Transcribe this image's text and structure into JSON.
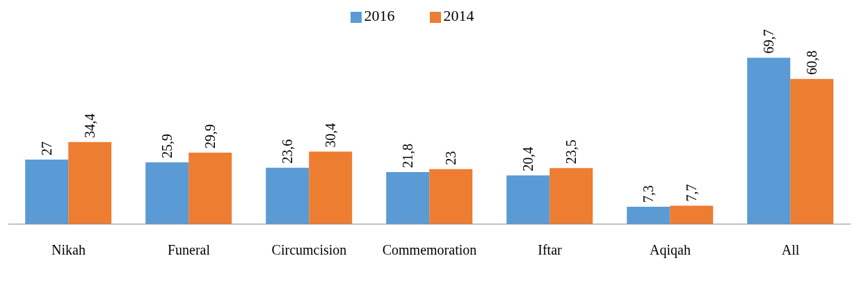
{
  "chart_data": {
    "type": "bar",
    "categories": [
      "Nikah",
      "Funeral",
      "Circumcision",
      "Commemoration",
      "Iftar",
      "Aqiqah",
      "All"
    ],
    "series": [
      {
        "name": "2016",
        "color": "#5b9bd5",
        "values": [
          27,
          25.9,
          23.6,
          21.8,
          20.4,
          7.3,
          69.7
        ],
        "value_labels": [
          "27",
          "25,9",
          "23,6",
          "21,8",
          "20,4",
          "7,3",
          "69,7"
        ]
      },
      {
        "name": "2014",
        "color": "#ed7d31",
        "values": [
          34.4,
          29.9,
          30.4,
          23,
          23.5,
          7.7,
          60.8
        ],
        "value_labels": [
          "34,4",
          "29,9",
          "30,4",
          "23",
          "23,5",
          "7,7",
          "60,8"
        ]
      }
    ],
    "legend": "top",
    "grid": false
  }
}
